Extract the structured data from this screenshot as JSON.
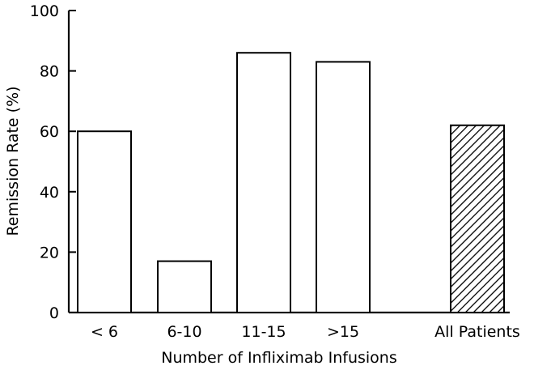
{
  "chart_data": {
    "type": "bar",
    "title": "",
    "xlabel": "Number of Infliximab Infusions",
    "ylabel": "Remission Rate (%)",
    "ylim": [
      0,
      100
    ],
    "yticks": [
      "0",
      "20",
      "40",
      "60",
      "80",
      "100"
    ],
    "categories": [
      "< 6",
      "6-10",
      "11-15",
      ">15",
      "All Patients"
    ],
    "values": [
      60,
      17,
      86,
      83,
      62
    ],
    "bar_fills": [
      "white",
      "white",
      "white",
      "white",
      "diagonal-hatch"
    ],
    "grid": false,
    "legend": "none",
    "colors": {
      "bar_outline": "#000000",
      "bar_fill": "#ffffff",
      "hatch": "#000000"
    }
  }
}
